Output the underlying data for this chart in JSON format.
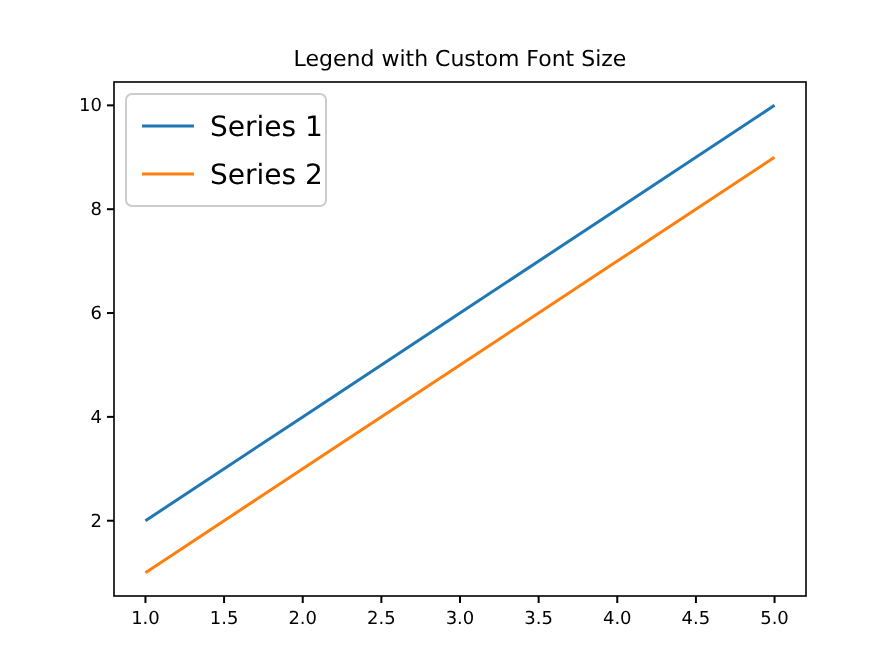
{
  "chart_data": {
    "type": "line",
    "title": "Legend with Custom Font Size",
    "x": [
      1,
      2,
      3,
      4,
      5
    ],
    "series": [
      {
        "name": "Series 1",
        "color": "#1f77b4",
        "values": [
          2,
          4,
          6,
          8,
          10
        ]
      },
      {
        "name": "Series 2",
        "color": "#ff7f0e",
        "values": [
          1,
          3,
          5,
          7,
          9
        ]
      }
    ],
    "xlim": [
      0.8,
      5.2
    ],
    "xticks": [
      {
        "value": 1,
        "label": "1.0"
      },
      {
        "value": 1.5,
        "label": "1.5"
      },
      {
        "value": 2,
        "label": "2.0"
      },
      {
        "value": 2.5,
        "label": "2.5"
      },
      {
        "value": 3,
        "label": "3.0"
      },
      {
        "value": 3.5,
        "label": "3.5"
      },
      {
        "value": 4,
        "label": "4.0"
      },
      {
        "value": 4.5,
        "label": "4.5"
      },
      {
        "value": 5,
        "label": "5.0"
      }
    ],
    "ylim": [
      0.55,
      10.45
    ],
    "yticks": [
      2,
      4,
      6,
      8,
      10
    ],
    "legend": "top left",
    "grid": false,
    "marker": "none",
    "line_style": "solid"
  }
}
